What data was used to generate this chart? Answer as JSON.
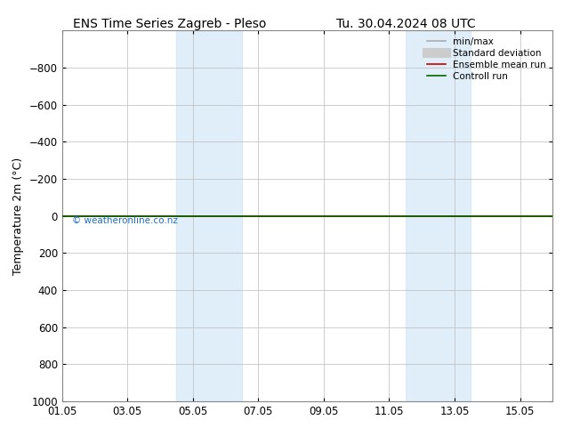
{
  "title_left": "ENS Time Series Zagreb - Pleso",
  "title_right": "Tu. 30.04.2024 08 UTC",
  "ylabel": "Temperature 2m (°C)",
  "ylim": [
    1000,
    -1000
  ],
  "yticks": [
    -800,
    -600,
    -400,
    -200,
    0,
    200,
    400,
    600,
    800,
    1000
  ],
  "xstart": "2024-05-01",
  "xend": "2024-05-16",
  "xtick_positions_days": [
    0,
    2,
    4,
    6,
    8,
    10,
    12,
    14
  ],
  "xtick_labels": [
    "01.05",
    "03.05",
    "05.05",
    "07.05",
    "09.05",
    "11.05",
    "13.05",
    "15.05"
  ],
  "shaded_bands": [
    {
      "start": 3.5,
      "end": 5.5
    },
    {
      "start": 10.5,
      "end": 12.5
    }
  ],
  "green_line_y": 0,
  "red_line_y": 0,
  "watermark": "© weatheronline.co.nz",
  "watermark_color": "#1a6ec7",
  "legend_items": [
    {
      "label": "min/max",
      "color": "#aaaaaa",
      "lw": 1.2,
      "style": "-"
    },
    {
      "label": "Standard deviation",
      "color": "#cccccc",
      "lw": 5,
      "style": "-"
    },
    {
      "label": "Ensemble mean run",
      "color": "#cc0000",
      "lw": 1.2,
      "style": "-"
    },
    {
      "label": "Controll run",
      "color": "#006600",
      "lw": 1.2,
      "style": "-"
    }
  ],
  "band_color": "#cce4f5",
  "band_alpha": 0.6,
  "bg_color": "#ffffff",
  "grid_color": "#bbbbbb",
  "title_fontsize": 10,
  "label_fontsize": 9,
  "tick_fontsize": 8.5,
  "legend_fontsize": 7.5
}
